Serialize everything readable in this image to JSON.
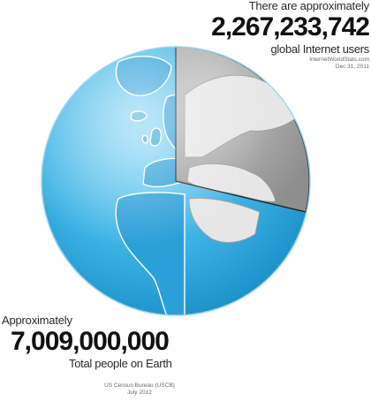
{
  "internet": {
    "intro": "There are approximately",
    "count": "2,267,233,742",
    "label": "global Internet users",
    "source_line1": "InternetWorldStats.com",
    "source_line2": "Dec 31, 2011"
  },
  "population": {
    "intro": "Approximately",
    "count": "7,009,000,000",
    "label": "Total people on Earth",
    "source_line1": "US Census Bureau (USCB)",
    "source_line2": "July 2012"
  },
  "share": {
    "internet_users": 2267233742,
    "world_population": 7009000000
  },
  "colors": {
    "ocean": "#2aa6de",
    "land": "#ffffff",
    "slice": "#a8a8a8",
    "slice_land": "#e4e4e4",
    "text": "#111111"
  }
}
